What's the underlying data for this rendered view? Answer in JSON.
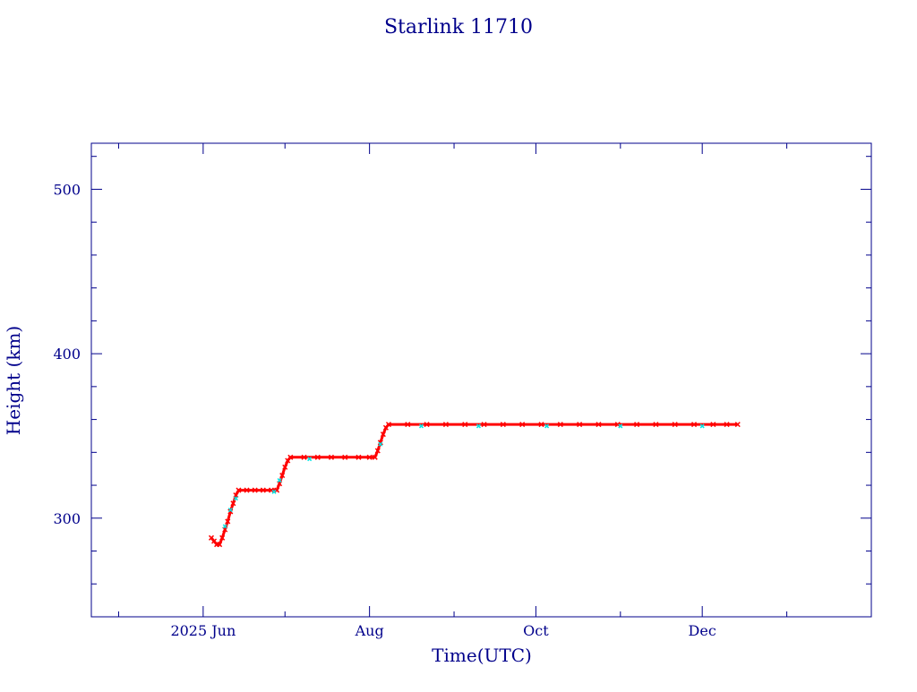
{
  "chart_data": {
    "type": "scatter",
    "title": "Starlink 11710",
    "xlabel": "Time(UTC)",
    "ylabel": "Height (km)",
    "xlim": [
      "2025-04-21",
      "2026-02-01"
    ],
    "ylim": [
      240,
      528
    ],
    "x_ticks": [
      {
        "date": "2025-06-01",
        "label": "2025 Jun"
      },
      {
        "date": "2025-08-01",
        "label": "Aug"
      },
      {
        "date": "2025-10-01",
        "label": "Oct"
      },
      {
        "date": "2025-12-01",
        "label": "Dec"
      }
    ],
    "y_ticks": [
      {
        "value": 300,
        "label": "300"
      },
      {
        "value": 400,
        "label": "400"
      },
      {
        "value": 500,
        "label": "500"
      }
    ],
    "grid": false,
    "colors": {
      "frame": "#00008b",
      "text": "#00008b",
      "primary_series": "#ff0000",
      "secondary_series": "#00e5e5"
    },
    "series": [
      {
        "marker_color": "#ff0000",
        "points": [
          [
            "2025-06-04",
            288
          ],
          [
            "2025-06-05",
            286
          ],
          [
            "2025-06-06",
            284
          ],
          [
            "2025-06-07",
            284
          ],
          [
            "2025-06-08",
            288
          ],
          [
            "2025-06-09",
            293
          ],
          [
            "2025-06-10",
            298
          ],
          [
            "2025-06-11",
            304
          ],
          [
            "2025-06-12",
            309
          ],
          [
            "2025-06-13",
            314
          ],
          [
            "2025-06-14",
            317
          ],
          [
            "2025-06-17",
            317
          ],
          [
            "2025-06-20",
            317
          ],
          [
            "2025-06-23",
            317
          ],
          [
            "2025-06-26",
            317
          ],
          [
            "2025-06-28",
            317
          ],
          [
            "2025-06-29",
            321
          ],
          [
            "2025-06-30",
            326
          ],
          [
            "2025-07-01",
            331
          ],
          [
            "2025-07-02",
            335
          ],
          [
            "2025-07-03",
            337
          ],
          [
            "2025-07-08",
            337
          ],
          [
            "2025-07-13",
            337
          ],
          [
            "2025-07-18",
            337
          ],
          [
            "2025-07-23",
            337
          ],
          [
            "2025-07-28",
            337
          ],
          [
            "2025-08-01",
            337
          ],
          [
            "2025-08-03",
            337
          ],
          [
            "2025-08-04",
            341
          ],
          [
            "2025-08-05",
            346
          ],
          [
            "2025-08-06",
            351
          ],
          [
            "2025-08-07",
            355
          ],
          [
            "2025-08-08",
            357
          ],
          [
            "2025-08-15",
            357
          ],
          [
            "2025-08-22",
            357
          ],
          [
            "2025-08-29",
            357
          ],
          [
            "2025-09-05",
            357
          ],
          [
            "2025-09-12",
            357
          ],
          [
            "2025-09-19",
            357
          ],
          [
            "2025-09-26",
            357
          ],
          [
            "2025-10-03",
            357
          ],
          [
            "2025-10-10",
            357
          ],
          [
            "2025-10-17",
            357
          ],
          [
            "2025-10-24",
            357
          ],
          [
            "2025-10-31",
            357
          ],
          [
            "2025-11-07",
            357
          ],
          [
            "2025-11-14",
            357
          ],
          [
            "2025-11-21",
            357
          ],
          [
            "2025-11-28",
            357
          ],
          [
            "2025-12-05",
            357
          ],
          [
            "2025-12-10",
            357
          ],
          [
            "2025-12-14",
            357
          ]
        ]
      },
      {
        "marker_color": "#00e5e5",
        "points": [
          [
            "2025-06-09",
            295
          ],
          [
            "2025-06-11",
            305
          ],
          [
            "2025-06-13",
            312
          ],
          [
            "2025-06-27",
            316
          ],
          [
            "2025-06-29",
            323
          ],
          [
            "2025-07-10",
            336
          ],
          [
            "2025-08-05",
            345
          ],
          [
            "2025-08-20",
            356
          ],
          [
            "2025-09-10",
            356
          ],
          [
            "2025-10-05",
            356
          ],
          [
            "2025-11-01",
            356
          ],
          [
            "2025-12-01",
            356
          ]
        ]
      }
    ]
  }
}
